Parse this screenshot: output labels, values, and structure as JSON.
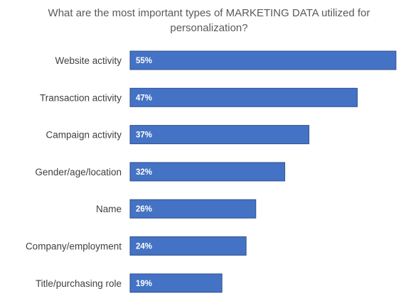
{
  "chart_data": {
    "type": "bar",
    "orientation": "horizontal",
    "title_lines": [
      "What are the most important types of MARKETING DATA utilized for",
      "personalization?"
    ],
    "categories": [
      "Website activity",
      "Transaction activity",
      "Campaign activity",
      "Gender/age/location",
      "Name",
      "Company/employment",
      "Title/purchasing role"
    ],
    "values": [
      55,
      47,
      37,
      32,
      26,
      24,
      19
    ],
    "value_labels": [
      "55%",
      "47%",
      "37%",
      "32%",
      "26%",
      "24%",
      "19%"
    ],
    "value_unit": "%",
    "bar_color": "#4472c4",
    "bar_border_color": "#2f528f",
    "grid": false,
    "legend": "none"
  }
}
